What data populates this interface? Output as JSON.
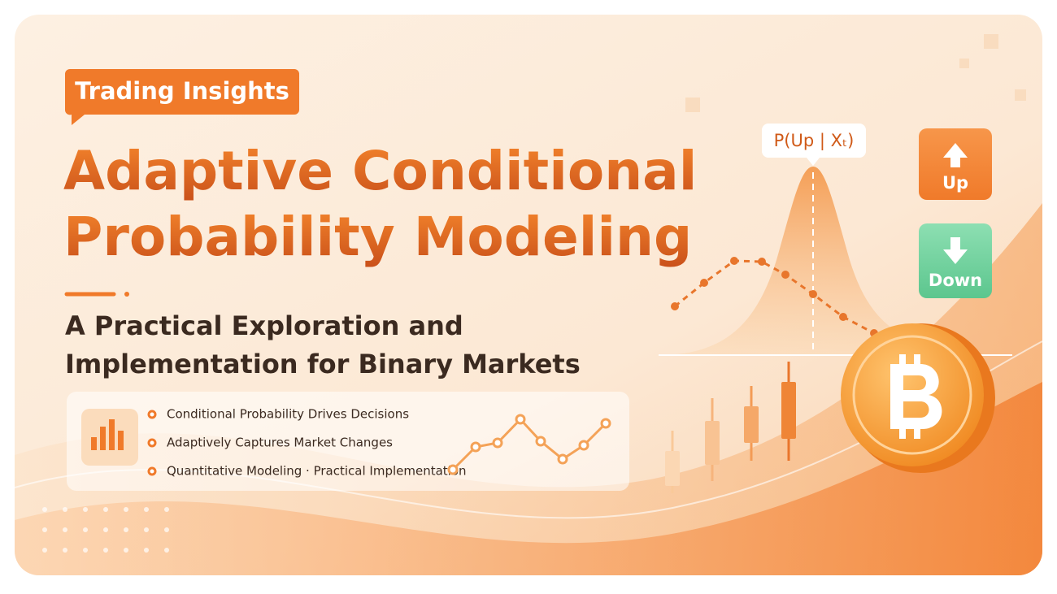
{
  "badge": "Trading Insights",
  "title": [
    "Adaptive Conditional",
    "Probability Modeling"
  ],
  "subtitle": [
    "A Practical Exploration and",
    "Implementation for Binary Markets"
  ],
  "bullets": [
    "Conditional Probability Drives Decisions",
    "Adaptively Captures Market Changes",
    "Quantitative Modeling · Practical Implementation"
  ],
  "probability_label": "P(Up | Xₜ)",
  "buttons": {
    "up": "Up",
    "down": "Down"
  }
}
